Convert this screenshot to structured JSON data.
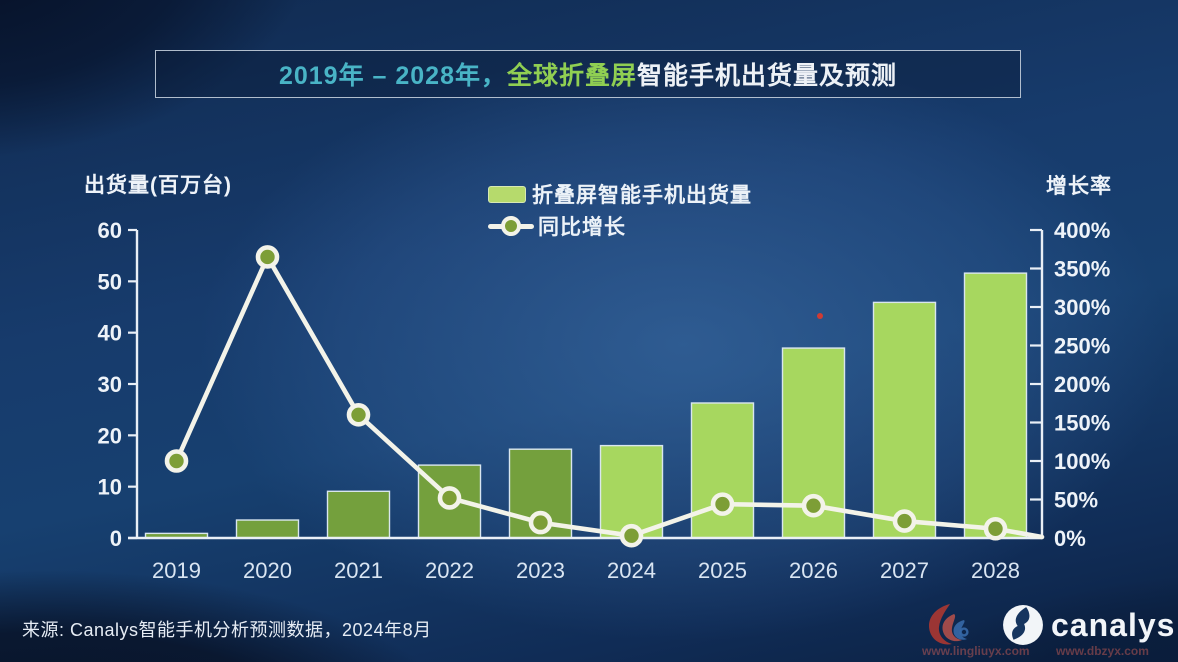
{
  "title": {
    "range": "2019年 – 2028年，",
    "highlight": "全球折叠屏",
    "rest": "智能手机出货量及预测"
  },
  "legend": {
    "bars_label": "折叠屏智能手机出货量",
    "line_label": "同比增长"
  },
  "source_text": "来源: Canalys智能手机分析预测数据，2024年8月",
  "brand": "canalys",
  "watermarks": [
    "www.lingliuyx.com",
    "www.dbzyx.com"
  ],
  "colors": {
    "bar_historical": "#74a03d",
    "bar_forecast": "#a7d75f",
    "bar_border": "#d9e6ef",
    "line": "#f3f3e9",
    "marker_fill": "#7d9e36",
    "axis": "#e9eff6",
    "tick_label": "#eef3f9",
    "x_label": "#d9e5f2",
    "red_dot": "#d93a2e"
  },
  "chart_data": {
    "type": "bar+line",
    "categories": [
      "2019",
      "2020",
      "2021",
      "2022",
      "2023",
      "2024",
      "2025",
      "2026",
      "2027",
      "2028"
    ],
    "series": [
      {
        "name": "折叠屏智能手机出货量",
        "type": "bar",
        "axis": "left",
        "unit": "百万台",
        "values": [
          0.9,
          3.5,
          9.1,
          14.2,
          17.3,
          18.0,
          26.3,
          37.0,
          45.9,
          51.6
        ],
        "forecast_from": "2024"
      },
      {
        "name": "同比增长",
        "type": "line",
        "axis": "right",
        "unit": "%",
        "values": [
          100,
          365,
          160,
          52,
          20,
          3,
          44,
          42,
          22,
          12
        ]
      }
    ],
    "left_axis": {
      "title": "出货量(百万台)",
      "min": 0,
      "max": 60,
      "step": 10
    },
    "right_axis": {
      "title": "增长率",
      "min": 0,
      "max": 400,
      "step": 50,
      "suffix": "%"
    },
    "grid": false,
    "legend_position": "top-center"
  }
}
